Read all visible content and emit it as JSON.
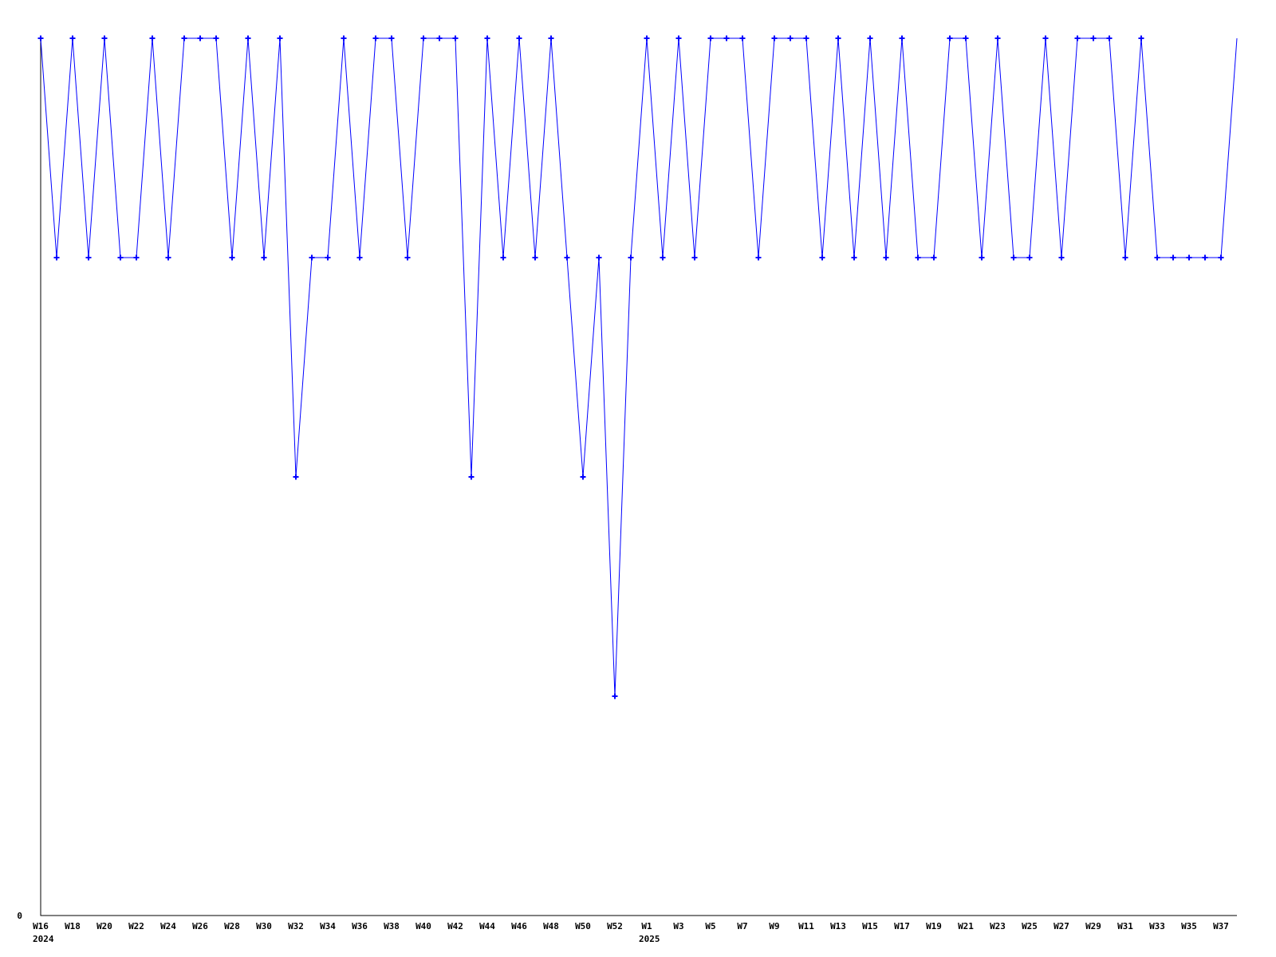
{
  "page": {
    "background": "#ffffff"
  },
  "chart_data": {
    "type": "line",
    "title": "",
    "xlabel": "",
    "ylabel": "",
    "legend": "none",
    "grid": "off",
    "series_color": "#0000ff",
    "axis_color": "#000000",
    "origin_label": "0",
    "y_axis_labels": [
      "0"
    ],
    "ylim": [
      0,
      4.4
    ],
    "tick_every": 2,
    "x_tick_labels_shown": [
      "W16",
      "W18",
      "W20",
      "W22",
      "W24",
      "W26",
      "W28",
      "W30",
      "W32",
      "W34",
      "W36",
      "W38",
      "W40",
      "W42",
      "W44",
      "W46",
      "W48",
      "W50",
      "W52",
      "W1",
      "W3",
      "W5",
      "W7",
      "W9",
      "W11",
      "W13",
      "W15",
      "W17",
      "W19",
      "W21",
      "W23",
      "W25",
      "W27",
      "W29",
      "W31",
      "W33",
      "W35",
      "W37"
    ],
    "year_rows": [
      {
        "text": "2024",
        "index": 0
      },
      {
        "text": "2025",
        "index": 38
      }
    ],
    "weeks": [
      "W16",
      "W17",
      "W18",
      "W19",
      "W20",
      "W21",
      "W22",
      "W23",
      "W24",
      "W25",
      "W26",
      "W27",
      "W28",
      "W29",
      "W30",
      "W31",
      "W32",
      "W33",
      "W34",
      "W35",
      "W36",
      "W37",
      "W38",
      "W39",
      "W40",
      "W41",
      "W42",
      "W43",
      "W44",
      "W45",
      "W46",
      "W47",
      "W48",
      "W49",
      "W50",
      "W51",
      "W52",
      "W53",
      "W1",
      "W2",
      "W3",
      "W4",
      "W5",
      "W6",
      "W7",
      "W8",
      "W9",
      "W10",
      "W11",
      "W12",
      "W13",
      "W14",
      "W15",
      "W16",
      "W17",
      "W18",
      "W19",
      "W20",
      "W21",
      "W22",
      "W23",
      "W24",
      "W25",
      "W26",
      "W27",
      "W28",
      "W29",
      "W30",
      "W31",
      "W32",
      "W33",
      "W34",
      "W35",
      "W36",
      "W37",
      "W38"
    ],
    "years": {
      "start_year_weeks": 38,
      "start_year": "2024",
      "end_year": "2025"
    },
    "values": [
      4,
      3,
      4,
      3,
      4,
      3,
      3,
      4,
      3,
      4,
      4,
      4,
      3,
      4,
      3,
      4,
      2,
      3,
      3,
      4,
      3,
      4,
      4,
      3,
      4,
      4,
      4,
      2,
      4,
      3,
      4,
      3,
      4,
      3,
      2,
      3,
      1,
      3,
      4,
      3,
      4,
      3,
      4,
      4,
      4,
      3,
      4,
      4,
      4,
      3,
      4,
      3,
      4,
      3,
      4,
      3,
      3,
      4,
      4,
      3,
      4,
      3,
      3,
      4,
      3,
      4,
      4,
      4,
      3,
      4,
      3,
      3,
      3,
      3,
      3,
      4
    ]
  }
}
